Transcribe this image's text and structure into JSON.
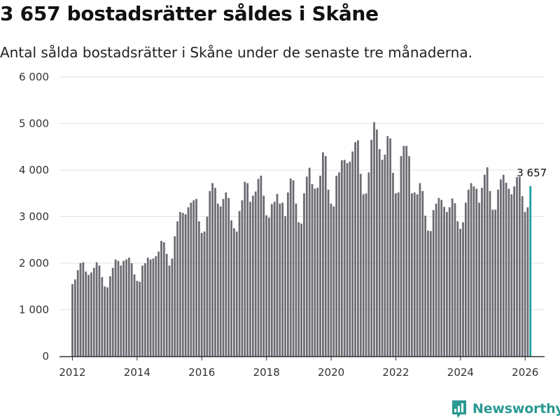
{
  "header": {
    "title": "3 657 bostadsrätter såldes i Skåne",
    "subtitle": "Antal sålda bostadsrätter i Skåne under de senaste tre månaderna."
  },
  "brand": {
    "name": "Newsworthy",
    "color": "#2a9a93"
  },
  "colors": {
    "bar": "#6b6b72",
    "highlight": "#1aa0a0",
    "grid": "#e2e2e2",
    "axis": "#333333"
  },
  "chart_data": {
    "type": "bar",
    "title": "3 657 bostadsrätter såldes i Skåne",
    "subtitle": "Antal sålda bostadsrätter i Skåne under de senaste tre månaderna.",
    "xlabel": "",
    "ylabel": "",
    "x_start": 2012,
    "x_step": 0.0833,
    "xlim": [
      2011.6,
      2026.6
    ],
    "ylim": [
      0,
      6000
    ],
    "y_ticks": [
      0,
      1000,
      2000,
      3000,
      4000,
      5000,
      6000
    ],
    "y_tick_labels": [
      "0",
      "1 000",
      "2 000",
      "3 000",
      "4 000",
      "5 000",
      "6 000"
    ],
    "x_ticks": [
      2012,
      2014,
      2016,
      2018,
      2020,
      2022,
      2024,
      2026
    ],
    "x_tick_labels": [
      "2012",
      "2014",
      "2016",
      "2018",
      "2020",
      "2022",
      "2024",
      "2026"
    ],
    "grid": true,
    "values": [
      1550,
      1650,
      1850,
      2000,
      2020,
      1820,
      1750,
      1800,
      1900,
      2020,
      1950,
      1700,
      1500,
      1480,
      1720,
      1900,
      2080,
      2050,
      1950,
      2050,
      2080,
      2120,
      2000,
      1760,
      1620,
      1600,
      1950,
      2000,
      2120,
      2080,
      2100,
      2150,
      2250,
      2480,
      2450,
      2200,
      1950,
      2100,
      2580,
      2900,
      3100,
      3080,
      3050,
      3200,
      3300,
      3350,
      3380,
      2900,
      2650,
      2680,
      3000,
      3550,
      3720,
      3620,
      3280,
      3220,
      3380,
      3520,
      3400,
      2920,
      2750,
      2680,
      3120,
      3350,
      3750,
      3720,
      3320,
      3450,
      3540,
      3810,
      3880,
      3450,
      3030,
      2980,
      3270,
      3320,
      3490,
      3280,
      3300,
      3010,
      3520,
      3820,
      3780,
      3280,
      2880,
      2850,
      3500,
      3860,
      4050,
      3700,
      3600,
      3620,
      3880,
      4380,
      4300,
      3580,
      3280,
      3220,
      3880,
      3950,
      4210,
      4220,
      4150,
      4180,
      4400,
      4600,
      4640,
      3920,
      3480,
      3500,
      3950,
      4650,
      5030,
      4870,
      4450,
      4220,
      4330,
      4730,
      4680,
      3940,
      3500,
      3520,
      4300,
      4520,
      4520,
      4300,
      3500,
      3520,
      3480,
      3720,
      3550,
      3020,
      2700,
      2690,
      3140,
      3280,
      3400,
      3360,
      3210,
      3100,
      3200,
      3390,
      3290,
      2900,
      2740,
      2880,
      3300,
      3580,
      3720,
      3650,
      3600,
      3300,
      3620,
      3900,
      4060,
      3550,
      3150,
      3150,
      3580,
      3800,
      3900,
      3730,
      3600,
      3480,
      3650,
      3850,
      3850,
      3440,
      3100,
      3200,
      3657
    ],
    "highlight": {
      "index": 170,
      "label": "3 657"
    }
  }
}
